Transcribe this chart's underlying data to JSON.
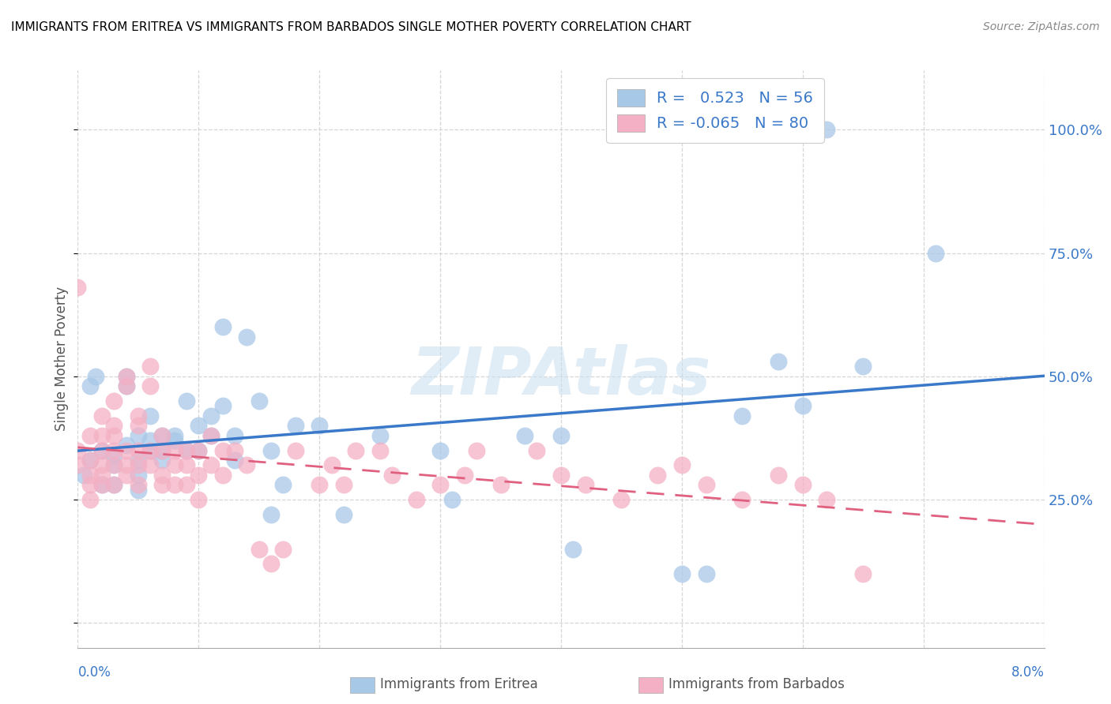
{
  "title": "IMMIGRANTS FROM ERITREA VS IMMIGRANTS FROM BARBADOS SINGLE MOTHER POVERTY CORRELATION CHART",
  "source": "Source: ZipAtlas.com",
  "ylabel": "Single Mother Poverty",
  "yticks": [
    0.0,
    0.25,
    0.5,
    0.75,
    1.0
  ],
  "ytick_labels": [
    "",
    "25.0%",
    "50.0%",
    "75.0%",
    "100.0%"
  ],
  "xlim": [
    0.0,
    0.08
  ],
  "ylim": [
    -0.05,
    1.12
  ],
  "legend_eritrea_R": " 0.523",
  "legend_eritrea_N": "56",
  "legend_barbados_R": "-0.065",
  "legend_barbados_N": "80",
  "color_eritrea": "#a8c8e8",
  "color_eritrea_line": "#3a78c9",
  "color_barbados": "#f4b0c4",
  "color_barbados_line": "#e06080",
  "watermark": "ZIPAtlas",
  "eritrea_points_x": [
    0.0005,
    0.001,
    0.001,
    0.0015,
    0.002,
    0.002,
    0.003,
    0.003,
    0.003,
    0.004,
    0.004,
    0.004,
    0.005,
    0.005,
    0.005,
    0.005,
    0.006,
    0.006,
    0.006,
    0.007,
    0.007,
    0.007,
    0.008,
    0.008,
    0.009,
    0.009,
    0.01,
    0.01,
    0.011,
    0.011,
    0.012,
    0.012,
    0.013,
    0.013,
    0.014,
    0.015,
    0.016,
    0.016,
    0.017,
    0.018,
    0.02,
    0.022,
    0.025,
    0.03,
    0.031,
    0.037,
    0.04,
    0.041,
    0.05,
    0.052,
    0.055,
    0.058,
    0.06,
    0.062,
    0.065,
    0.071
  ],
  "eritrea_points_y": [
    0.3,
    0.48,
    0.33,
    0.5,
    0.35,
    0.28,
    0.32,
    0.34,
    0.28,
    0.48,
    0.5,
    0.36,
    0.38,
    0.33,
    0.3,
    0.27,
    0.35,
    0.42,
    0.37,
    0.33,
    0.35,
    0.38,
    0.37,
    0.38,
    0.35,
    0.45,
    0.4,
    0.35,
    0.38,
    0.42,
    0.44,
    0.6,
    0.38,
    0.33,
    0.58,
    0.45,
    0.35,
    0.22,
    0.28,
    0.4,
    0.4,
    0.22,
    0.38,
    0.35,
    0.25,
    0.38,
    0.38,
    0.15,
    0.1,
    0.1,
    0.42,
    0.53,
    0.44,
    1.0,
    0.52,
    0.75
  ],
  "barbados_points_x": [
    0.0,
    0.0,
    0.0,
    0.001,
    0.001,
    0.001,
    0.001,
    0.001,
    0.002,
    0.002,
    0.002,
    0.002,
    0.002,
    0.002,
    0.003,
    0.003,
    0.003,
    0.003,
    0.003,
    0.003,
    0.004,
    0.004,
    0.004,
    0.004,
    0.004,
    0.005,
    0.005,
    0.005,
    0.005,
    0.005,
    0.006,
    0.006,
    0.006,
    0.006,
    0.007,
    0.007,
    0.007,
    0.007,
    0.008,
    0.008,
    0.008,
    0.009,
    0.009,
    0.009,
    0.01,
    0.01,
    0.01,
    0.011,
    0.011,
    0.012,
    0.012,
    0.013,
    0.014,
    0.015,
    0.016,
    0.017,
    0.018,
    0.02,
    0.021,
    0.022,
    0.023,
    0.025,
    0.026,
    0.028,
    0.03,
    0.032,
    0.033,
    0.035,
    0.038,
    0.04,
    0.042,
    0.045,
    0.048,
    0.05,
    0.052,
    0.055,
    0.058,
    0.06,
    0.062,
    0.065
  ],
  "barbados_points_y": [
    0.68,
    0.32,
    0.35,
    0.38,
    0.3,
    0.33,
    0.28,
    0.25,
    0.32,
    0.35,
    0.3,
    0.28,
    0.38,
    0.42,
    0.35,
    0.32,
    0.28,
    0.38,
    0.4,
    0.45,
    0.35,
    0.32,
    0.3,
    0.48,
    0.5,
    0.35,
    0.32,
    0.28,
    0.4,
    0.42,
    0.35,
    0.32,
    0.48,
    0.52,
    0.38,
    0.35,
    0.3,
    0.28,
    0.35,
    0.32,
    0.28,
    0.35,
    0.32,
    0.28,
    0.35,
    0.3,
    0.25,
    0.38,
    0.32,
    0.35,
    0.3,
    0.35,
    0.32,
    0.15,
    0.12,
    0.15,
    0.35,
    0.28,
    0.32,
    0.28,
    0.35,
    0.35,
    0.3,
    0.25,
    0.28,
    0.3,
    0.35,
    0.28,
    0.35,
    0.3,
    0.28,
    0.25,
    0.3,
    0.32,
    0.28,
    0.25,
    0.3,
    0.28,
    0.25,
    0.1
  ]
}
